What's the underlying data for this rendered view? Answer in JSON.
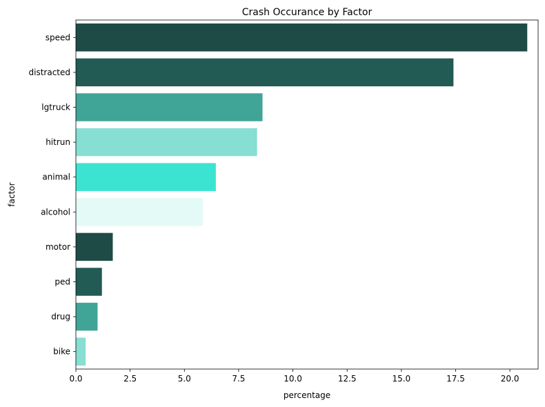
{
  "chart_data": {
    "type": "bar",
    "orientation": "horizontal",
    "title": "Crash Occurance by Factor",
    "xlabel": "percentage",
    "ylabel": "factor",
    "xlim": [
      0,
      21.3
    ],
    "xticks": [
      "0.0",
      "2.5",
      "5.0",
      "7.5",
      "10.0",
      "12.5",
      "15.0",
      "17.5",
      "20.0"
    ],
    "categories": [
      "speed",
      "distracted",
      "lgtruck",
      "hitrun",
      "animal",
      "alcohol",
      "motor",
      "ped",
      "drug",
      "bike"
    ],
    "values": [
      20.8,
      17.4,
      8.6,
      8.35,
      6.45,
      5.85,
      1.7,
      1.2,
      1.0,
      0.45
    ],
    "colors": [
      "#1e4b45",
      "#225a54",
      "#40a497",
      "#87ded3",
      "#3ae4d0",
      "#e4faf6",
      "#1e4b45",
      "#225a54",
      "#40a497",
      "#87ded3"
    ],
    "grid": false,
    "legend": "none"
  }
}
